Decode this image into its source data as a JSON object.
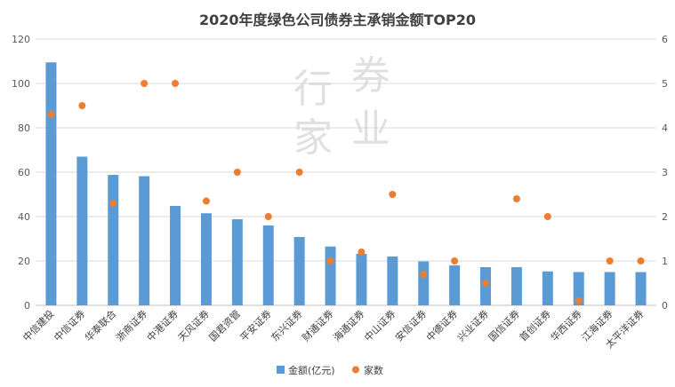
{
  "chart_data": {
    "type": "bar",
    "title": "2020年度绿色公司债券主承销金额TOP20",
    "categories": [
      "中信建投",
      "中信证券",
      "华泰联合",
      "浙商证券",
      "中港证券",
      "天风证券",
      "国君资管",
      "平安证券",
      "东兴证券",
      "财通证券",
      "海通证券",
      "中山证券",
      "安信证券",
      "中德证券",
      "兴业证券",
      "国信证券",
      "首创证券",
      "华西证券",
      "江海证券",
      "太平洋证券"
    ],
    "series": [
      {
        "name": "金额(亿元)",
        "axis": "left",
        "kind": "bar",
        "color": "#5b9bd5",
        "values": [
          109.5,
          67.0,
          58.8,
          58.2,
          44.8,
          41.5,
          38.8,
          36.0,
          30.8,
          26.5,
          23.2,
          22.0,
          19.8,
          18.0,
          17.2,
          17.2,
          15.3,
          15.0,
          15.0,
          15.0
        ]
      },
      {
        "name": "家数",
        "axis": "right",
        "kind": "scatter",
        "color": "#ed7d31",
        "values": [
          4.3,
          4.5,
          2.3,
          5,
          5,
          2.35,
          3,
          2,
          3,
          1,
          1.2,
          2.5,
          0.7,
          1,
          0.5,
          2.4,
          2,
          0.1,
          1,
          1
        ]
      }
    ],
    "y_left": {
      "min": 0,
      "max": 120,
      "ticks": [
        0,
        20,
        40,
        60,
        80,
        100,
        120
      ]
    },
    "y_right": {
      "min": 0,
      "max": 6,
      "ticks": [
        0,
        1,
        2,
        3,
        4,
        5,
        6
      ]
    },
    "grid": true,
    "legend_position": "bottom"
  },
  "watermark": {
    "text": "行 券 家 业"
  },
  "legend": {
    "bar_label": "金额(亿元)",
    "dot_label": "家数"
  }
}
